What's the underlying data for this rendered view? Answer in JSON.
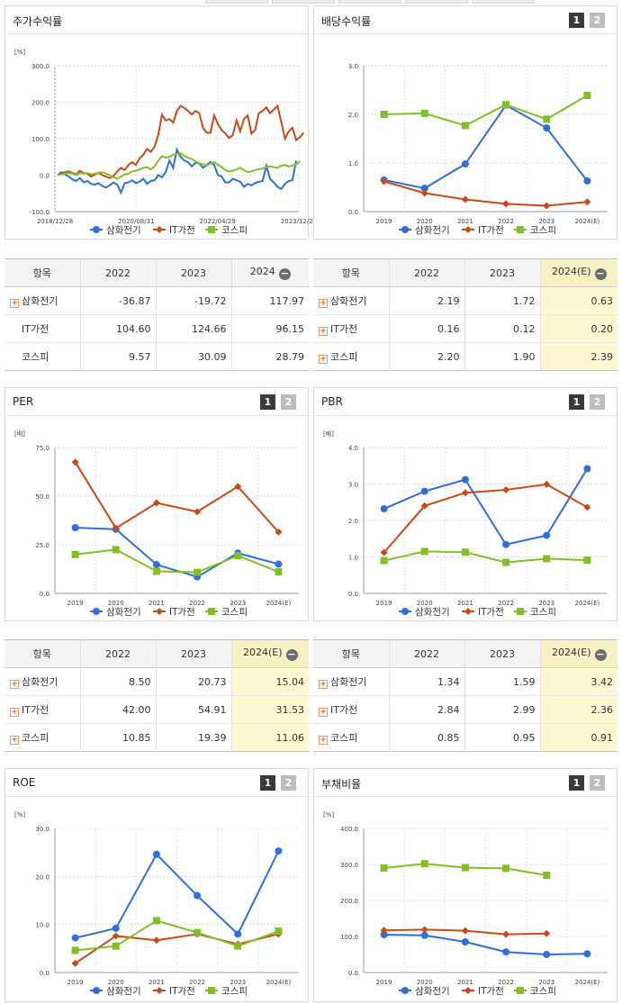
{
  "colors": {
    "samhwa": "#2f6fd6",
    "itgajeon": "#c94a18",
    "kospi": "#82be28"
  },
  "legend": [
    "삼화전기",
    "IT가전",
    "코스피"
  ],
  "panels": {
    "stock": {
      "title": "주가수익률"
    },
    "dividend": {
      "title": "배당수익률",
      "btn1": "1",
      "btn2": "2"
    },
    "per": {
      "title": "PER",
      "btn1": "1",
      "btn2": "2"
    },
    "pbr": {
      "title": "PBR",
      "btn1": "1",
      "btn2": "2"
    },
    "roe": {
      "title": "ROE",
      "btn1": "1",
      "btn2": "2"
    },
    "debt": {
      "title": "부채비율",
      "btn1": "1",
      "btn2": "2"
    }
  },
  "tables": {
    "stock": {
      "headers": [
        "항목",
        "2022",
        "2023",
        "2024"
      ],
      "rows": [
        {
          "name": "삼화전기",
          "plus": true,
          "v": [
            "-36.87",
            "-19.72",
            "117.97"
          ]
        },
        {
          "name": "IT가전",
          "plus": false,
          "v": [
            "104.60",
            "124.66",
            "96.15"
          ]
        },
        {
          "name": "코스피",
          "plus": false,
          "v": [
            "9.57",
            "30.09",
            "28.79"
          ]
        }
      ]
    },
    "dividend": {
      "headers": [
        "항목",
        "2022",
        "2023",
        "2024(E)"
      ],
      "rows": [
        {
          "name": "삼화전기",
          "plus": true,
          "v": [
            "2.19",
            "1.72",
            "0.63"
          ]
        },
        {
          "name": "IT가전",
          "plus": true,
          "v": [
            "0.16",
            "0.12",
            "0.20"
          ]
        },
        {
          "name": "코스피",
          "plus": true,
          "v": [
            "2.20",
            "1.90",
            "2.39"
          ]
        }
      ]
    },
    "per": {
      "headers": [
        "항목",
        "2022",
        "2023",
        "2024(E)"
      ],
      "rows": [
        {
          "name": "삼화전기",
          "plus": true,
          "v": [
            "8.50",
            "20.73",
            "15.04"
          ]
        },
        {
          "name": "IT가전",
          "plus": true,
          "v": [
            "42.00",
            "54.91",
            "31.53"
          ]
        },
        {
          "name": "코스피",
          "plus": true,
          "v": [
            "10.85",
            "19.39",
            "11.06"
          ]
        }
      ]
    },
    "pbr": {
      "headers": [
        "항목",
        "2022",
        "2023",
        "2024(E)"
      ],
      "rows": [
        {
          "name": "삼화전기",
          "plus": true,
          "v": [
            "1.34",
            "1.59",
            "3.42"
          ]
        },
        {
          "name": "IT가전",
          "plus": true,
          "v": [
            "2.84",
            "2.99",
            "2.36"
          ]
        },
        {
          "name": "코스피",
          "plus": true,
          "v": [
            "0.85",
            "0.95",
            "0.91"
          ]
        }
      ]
    }
  },
  "chart_data": [
    {
      "id": "stock",
      "type": "line",
      "unit": "[%]",
      "ylim": [
        -100,
        300
      ],
      "yticks": [
        "-100.0",
        "0.0",
        "100.0",
        "200.0",
        "300.0"
      ],
      "xticks": [
        "2018/12/28",
        "2020/08/31",
        "2022/04/29",
        "2023/12/28"
      ],
      "x_range": [
        "2018-12-28",
        "2023-12-28"
      ],
      "series": [
        {
          "name": "삼화전기",
          "values": [
            0,
            8,
            2,
            -4,
            -12,
            -16,
            -8,
            -20,
            -16,
            -24,
            -26,
            -22,
            -30,
            -34,
            -28,
            -20,
            -26,
            -48,
            -22,
            -20,
            -14,
            -22,
            -18,
            -10,
            -24,
            -16,
            -14,
            0,
            -6,
            8,
            40,
            20,
            70,
            50,
            40,
            36,
            24,
            34,
            32,
            20,
            28,
            36,
            28,
            0,
            -4,
            -20,
            -20,
            -10,
            -14,
            -18,
            -32,
            -24,
            -28,
            -22,
            -18,
            -16,
            26,
            -10,
            -20,
            -32,
            -38,
            -24,
            -16,
            -14,
            40
          ]
        },
        {
          "name": "IT가전",
          "values": [
            0,
            4,
            8,
            10,
            6,
            2,
            12,
            6,
            4,
            -4,
            2,
            6,
            0,
            -4,
            -8,
            -2,
            10,
            20,
            14,
            28,
            36,
            28,
            46,
            56,
            72,
            64,
            78,
            110,
            166,
            150,
            154,
            144,
            176,
            190,
            184,
            176,
            166,
            176,
            170,
            130,
            116,
            116,
            164,
            140,
            124,
            114,
            102,
            110,
            150,
            120,
            154,
            164,
            114,
            124,
            170,
            176,
            186,
            170,
            180,
            190,
            146,
            100,
            120,
            130,
            96,
            104,
            116
          ]
        },
        {
          "name": "코스피",
          "values": [
            0,
            2,
            4,
            6,
            4,
            0,
            6,
            4,
            6,
            2,
            4,
            6,
            8,
            4,
            0,
            -6,
            -10,
            -4,
            2,
            4,
            10,
            12,
            16,
            20,
            22,
            16,
            24,
            40,
            52,
            48,
            50,
            56,
            58,
            60,
            52,
            48,
            44,
            38,
            32,
            30,
            26,
            32,
            36,
            28,
            22,
            14,
            10,
            12,
            16,
            20,
            14,
            8,
            10,
            14,
            16,
            18,
            22,
            24,
            22,
            20,
            26,
            28,
            24,
            26,
            30,
            38
          ]
        }
      ]
    },
    {
      "id": "dividend",
      "type": "line",
      "unit": "",
      "ylim": [
        0,
        3
      ],
      "yticks": [
        "0.0",
        "1.0",
        "2.0",
        "3.0"
      ],
      "categories": [
        "2019",
        "2020",
        "2021",
        "2022",
        "2023",
        "2024(E)"
      ],
      "series": [
        {
          "name": "삼화전기",
          "values": [
            0.65,
            0.48,
            0.98,
            2.19,
            1.72,
            0.63
          ]
        },
        {
          "name": "IT가전",
          "values": [
            0.62,
            0.38,
            0.25,
            0.16,
            0.12,
            0.2
          ]
        },
        {
          "name": "코스피",
          "values": [
            2.0,
            2.02,
            1.77,
            2.2,
            1.9,
            2.39
          ]
        }
      ]
    },
    {
      "id": "per",
      "type": "line",
      "unit": "[배]",
      "ylim": [
        0,
        75
      ],
      "yticks": [
        "0.0",
        "25.0",
        "50.0",
        "75.0"
      ],
      "categories": [
        "2019",
        "2020",
        "2021",
        "2022",
        "2023",
        "2024(E)"
      ],
      "series": [
        {
          "name": "삼화전기",
          "values": [
            33.8,
            33.0,
            14.8,
            8.5,
            20.73,
            15.04
          ]
        },
        {
          "name": "IT가전",
          "values": [
            67.5,
            33.5,
            46.5,
            42.0,
            54.91,
            31.53
          ]
        },
        {
          "name": "코스피",
          "values": [
            20.0,
            22.5,
            11.4,
            10.85,
            19.39,
            11.06
          ]
        }
      ]
    },
    {
      "id": "pbr",
      "type": "line",
      "unit": "[배]",
      "ylim": [
        0,
        4
      ],
      "yticks": [
        "0.0",
        "1.0",
        "2.0",
        "3.0",
        "4.0"
      ],
      "categories": [
        "2019",
        "2020",
        "2021",
        "2022",
        "2023",
        "2024(E)"
      ],
      "series": [
        {
          "name": "삼화전기",
          "values": [
            2.32,
            2.8,
            3.12,
            1.34,
            1.59,
            3.42
          ]
        },
        {
          "name": "IT가전",
          "values": [
            1.12,
            2.4,
            2.76,
            2.84,
            2.99,
            2.36
          ]
        },
        {
          "name": "코스피",
          "values": [
            0.9,
            1.15,
            1.13,
            0.85,
            0.95,
            0.91
          ]
        }
      ]
    },
    {
      "id": "roe",
      "type": "line",
      "unit": "[%]",
      "ylim": [
        0,
        30
      ],
      "yticks": [
        "0.0",
        "10.0",
        "20.0",
        "30.0"
      ],
      "categories": [
        "2019",
        "2020",
        "2021",
        "2022",
        "2023",
        "2024(E)"
      ],
      "series": [
        {
          "name": "삼화전기",
          "values": [
            7.2,
            9.2,
            24.6,
            16.0,
            8.0,
            25.3
          ]
        },
        {
          "name": "IT가전",
          "values": [
            1.9,
            7.6,
            6.7,
            8.0,
            5.9,
            8.0
          ]
        },
        {
          "name": "코스피",
          "values": [
            4.6,
            5.5,
            10.8,
            8.3,
            5.5,
            8.6
          ]
        }
      ]
    },
    {
      "id": "debt",
      "type": "line",
      "unit": "[%]",
      "ylim": [
        0,
        400
      ],
      "yticks": [
        "0.0",
        "100.0",
        "200.0",
        "300.0",
        "400.0"
      ],
      "categories": [
        "2019",
        "2020",
        "2021",
        "2022",
        "2023",
        "2024(E)"
      ],
      "series": [
        {
          "name": "삼화전기",
          "values": [
            105,
            103,
            85,
            57,
            50,
            52
          ]
        },
        {
          "name": "IT가전",
          "values": [
            117,
            119,
            116,
            106,
            108,
            null
          ]
        },
        {
          "name": "코스피",
          "values": [
            290,
            302,
            291,
            289,
            270,
            null
          ]
        }
      ]
    }
  ]
}
